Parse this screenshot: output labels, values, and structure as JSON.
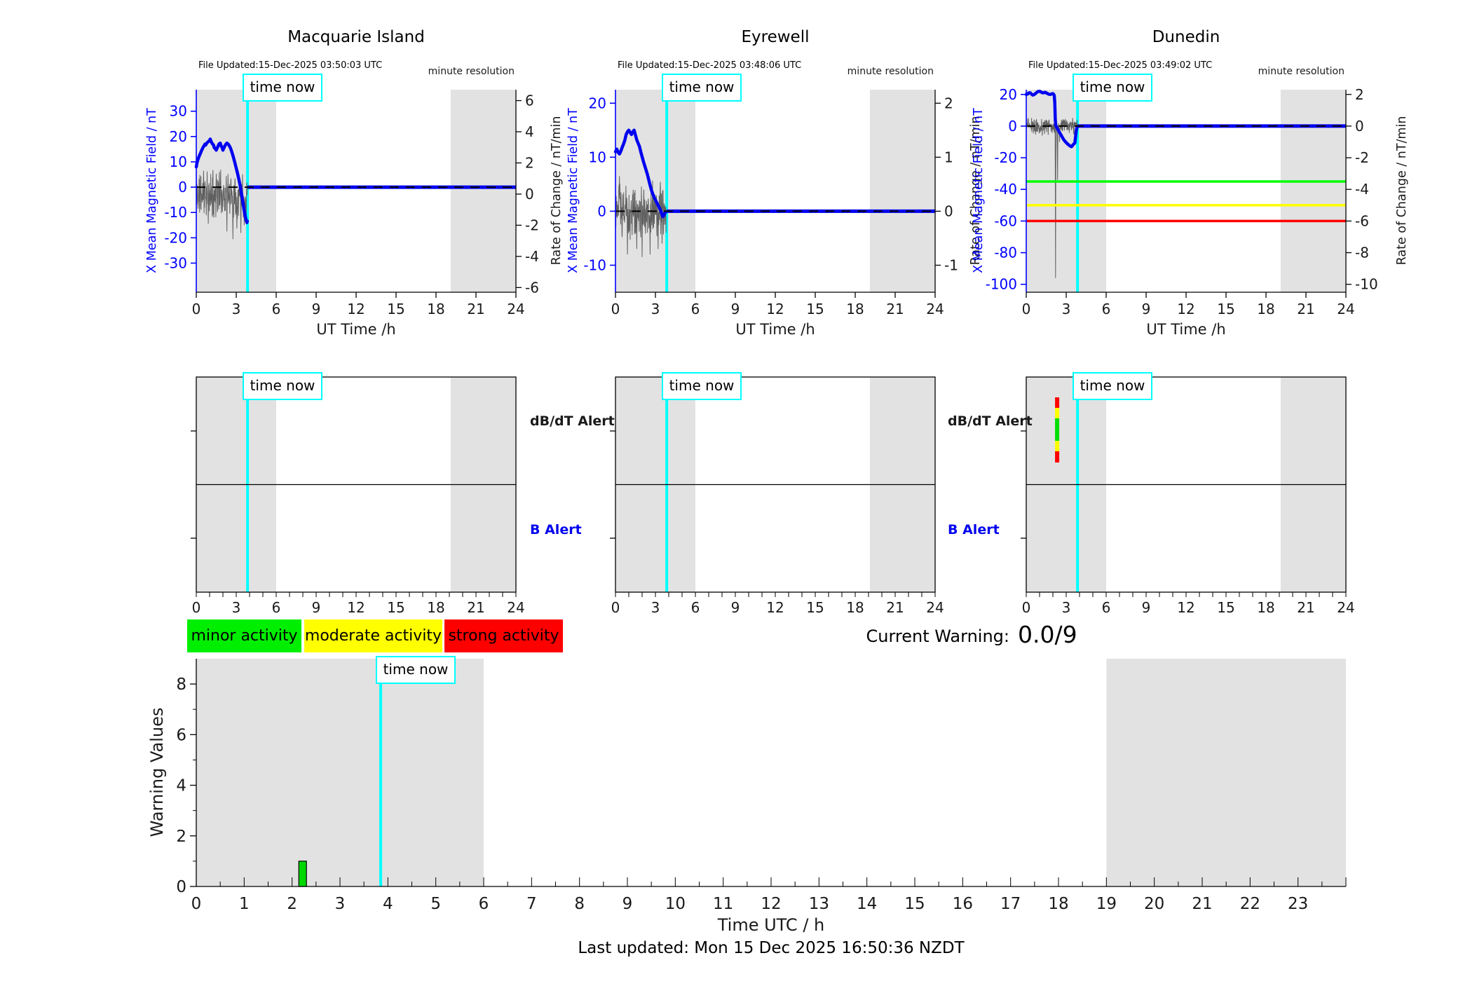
{
  "alert_row": {
    "db_dt_label": "dB/dT Alert",
    "b_label": "B Alert",
    "dunedin_bar": {
      "time": 2.32,
      "width": 6,
      "top_offset": 29,
      "segments": [
        {
          "color": "#ff0000",
          "weight": 15
        },
        {
          "color": "#ffff00",
          "weight": 15
        },
        {
          "color": "#00dd00",
          "weight": 32
        },
        {
          "color": "#ffff00",
          "weight": 15
        },
        {
          "color": "#ff0000",
          "weight": 16
        }
      ]
    }
  },
  "activity_legend": [
    {
      "label": "minor activity",
      "color": "#00ef00"
    },
    {
      "label": "moderate activity",
      "color": "#ffff00"
    },
    {
      "label": "strong activity",
      "color": "#ff0000"
    }
  ],
  "current_warning": {
    "label": "Current Warning:",
    "value": "0.0/9"
  },
  "footer": {
    "last_updated": "Last updated: Mon 15 Dec 2025 16:50:36 NZDT"
  },
  "colors": {
    "field_line": "#0000f0",
    "noise_line": "#606060",
    "time_now": "#00ffff",
    "night_band": "#e2e2e2",
    "tick_text": "#1a1a1a",
    "blue_axis": "#0000ff"
  },
  "chart_data": [
    {
      "type": "line",
      "title": "Macquarie Island",
      "file_updated": "File Updated:15-Dec-2025 03:50:03 UTC",
      "resolution_note": "minute resolution",
      "time_now_label": "time now",
      "time_now": 3.85,
      "night_shading": [
        [
          0,
          6
        ],
        [
          19.1,
          24
        ]
      ],
      "x_axis": {
        "label": "UT Time /h",
        "range": [
          0,
          24
        ],
        "ticks": [
          0,
          3,
          6,
          9,
          12,
          15,
          18,
          21,
          24
        ]
      },
      "left_axis": {
        "label": "X Mean Magnetic Field / nT",
        "range": [
          -41.5,
          38.5
        ],
        "ticks": [
          30,
          20,
          10,
          0,
          -10,
          -20,
          -30
        ]
      },
      "right_axis": {
        "label": "Rate of Change / nT/min",
        "range": [
          -6.3,
          6.7
        ],
        "ticks": [
          6,
          4,
          2,
          0,
          -2,
          -4,
          -6
        ]
      },
      "thresholds": [],
      "flat_value_after_now": 0,
      "field_series": [
        [
          0,
          8
        ],
        [
          0.05,
          9.5
        ],
        [
          0.1,
          10.5
        ],
        [
          0.2,
          12
        ],
        [
          0.3,
          13.2
        ],
        [
          0.4,
          14.5
        ],
        [
          0.5,
          15.6
        ],
        [
          0.6,
          16.5
        ],
        [
          0.65,
          17
        ],
        [
          0.7,
          16.6
        ],
        [
          0.8,
          17.5
        ],
        [
          0.9,
          18
        ],
        [
          1,
          18.4
        ],
        [
          1.05,
          19
        ],
        [
          1.1,
          18.2
        ],
        [
          1.2,
          17.2
        ],
        [
          1.3,
          16.6
        ],
        [
          1.35,
          15.6
        ],
        [
          1.45,
          15
        ],
        [
          1.5,
          14.6
        ],
        [
          1.55,
          15.2
        ],
        [
          1.65,
          16.4
        ],
        [
          1.7,
          17
        ],
        [
          1.8,
          17.4
        ],
        [
          1.85,
          16.6
        ],
        [
          1.95,
          15.4
        ],
        [
          2,
          14.6
        ],
        [
          2.1,
          15.8
        ],
        [
          2.2,
          16.8
        ],
        [
          2.3,
          17.4
        ],
        [
          2.4,
          17
        ],
        [
          2.5,
          16.2
        ],
        [
          2.6,
          15
        ],
        [
          2.7,
          13.4
        ],
        [
          2.8,
          11.6
        ],
        [
          2.9,
          9.6
        ],
        [
          3,
          7.5
        ],
        [
          3.1,
          5.4
        ],
        [
          3.2,
          3
        ],
        [
          3.3,
          0.4
        ],
        [
          3.4,
          -2.6
        ],
        [
          3.5,
          -6
        ],
        [
          3.6,
          -9.4
        ],
        [
          3.7,
          -12
        ],
        [
          3.75,
          -13.2
        ],
        [
          3.8,
          -14
        ],
        [
          3.83,
          -13.4
        ]
      ],
      "rate_noise": {
        "sigma": 0.9,
        "t_end": 3.83,
        "seed": 11,
        "spikes": [
          [
            0.55,
            1.5
          ],
          [
            0.9,
            -1.9
          ],
          [
            1.5,
            1.3
          ],
          [
            2.3,
            -2.4
          ],
          [
            2.75,
            -2.9
          ],
          [
            3.05,
            -2.2
          ],
          [
            3.35,
            -2.5
          ],
          [
            3.6,
            -2
          ]
        ]
      }
    },
    {
      "type": "line",
      "title": "Eyrewell",
      "file_updated": "File Updated:15-Dec-2025 03:48:06 UTC",
      "resolution_note": "minute resolution",
      "time_now_label": "time now",
      "time_now": 3.85,
      "night_shading": [
        [
          0,
          6
        ],
        [
          19.1,
          24
        ]
      ],
      "x_axis": {
        "label": "UT Time /h",
        "range": [
          0,
          24
        ],
        "ticks": [
          0,
          3,
          6,
          9,
          12,
          15,
          18,
          21,
          24
        ]
      },
      "left_axis": {
        "label": "X Mean Magnetic Field / nT",
        "range": [
          -15,
          22.5
        ],
        "ticks": [
          20,
          10,
          0,
          -10
        ]
      },
      "right_axis": {
        "label": "Rate of Change / nT/min",
        "range": [
          -1.5,
          2.25
        ],
        "ticks": [
          2,
          1,
          0,
          -1
        ]
      },
      "thresholds": [],
      "flat_value_after_now": 0,
      "field_series": [
        [
          0,
          11
        ],
        [
          0.1,
          11.5
        ],
        [
          0.2,
          10.9
        ],
        [
          0.3,
          10.6
        ],
        [
          0.4,
          11.1
        ],
        [
          0.5,
          11.8
        ],
        [
          0.6,
          12.4
        ],
        [
          0.7,
          13.1
        ],
        [
          0.8,
          14.2
        ],
        [
          0.9,
          14.7
        ],
        [
          1,
          15
        ],
        [
          1.1,
          14.6
        ],
        [
          1.2,
          14.2
        ],
        [
          1.3,
          14.7
        ],
        [
          1.4,
          15
        ],
        [
          1.5,
          14.1
        ],
        [
          1.6,
          13.2
        ],
        [
          1.7,
          12.6
        ],
        [
          1.8,
          12
        ],
        [
          1.9,
          11
        ],
        [
          2,
          10.1
        ],
        [
          2.1,
          9.2
        ],
        [
          2.2,
          8.4
        ],
        [
          2.3,
          7.6
        ],
        [
          2.4,
          6.8
        ],
        [
          2.5,
          5.8
        ],
        [
          2.6,
          4.8
        ],
        [
          2.7,
          3.9
        ],
        [
          2.8,
          3.2
        ],
        [
          2.9,
          2.6
        ],
        [
          3,
          2.1
        ],
        [
          3.1,
          1.6
        ],
        [
          3.2,
          1.1
        ],
        [
          3.3,
          0.6
        ],
        [
          3.4,
          0.1
        ],
        [
          3.5,
          -0.7
        ],
        [
          3.55,
          -1
        ],
        [
          3.6,
          -0.9
        ],
        [
          3.7,
          -0.4
        ],
        [
          3.8,
          -0.1
        ]
      ],
      "rate_noise": {
        "sigma": 0.32,
        "t_end": 3.8,
        "seed": 23,
        "spikes": [
          [
            0.3,
            0.65
          ],
          [
            0.9,
            -0.8
          ],
          [
            1.6,
            -0.7
          ],
          [
            2,
            -0.85
          ],
          [
            2.6,
            -0.8
          ],
          [
            3.2,
            -0.7
          ],
          [
            3.5,
            -0.6
          ]
        ]
      }
    },
    {
      "type": "line",
      "title": "Dunedin",
      "file_updated": "File Updated:15-Dec-2025 03:49:02 UTC",
      "resolution_note": "minute resolution",
      "time_now_label": "time now",
      "time_now": 3.85,
      "night_shading": [
        [
          0,
          6
        ],
        [
          19.1,
          24
        ]
      ],
      "x_axis": {
        "label": "UT Time /h",
        "range": [
          0,
          24
        ],
        "ticks": [
          0,
          3,
          6,
          9,
          12,
          15,
          18,
          21,
          24
        ]
      },
      "left_axis": {
        "label": "X Mean Magnetic Field / nT",
        "range": [
          -105,
          23
        ],
        "ticks": [
          20,
          0,
          -20,
          -40,
          -60,
          -80,
          -100
        ]
      },
      "right_axis": {
        "label": "Rate of Change / nT/min",
        "range": [
          -10.5,
          2.3
        ],
        "ticks": [
          2,
          0,
          -2,
          -4,
          -6,
          -8,
          -10
        ]
      },
      "thresholds": [
        {
          "value": -35,
          "color": "#00ff00"
        },
        {
          "value": -50,
          "color": "#ffff00"
        },
        {
          "value": -60,
          "color": "#ff0000"
        }
      ],
      "flat_value_after_now": 0,
      "field_series": [
        [
          0,
          20
        ],
        [
          0.1,
          20.3
        ],
        [
          0.2,
          21
        ],
        [
          0.3,
          21
        ],
        [
          0.4,
          20.1
        ],
        [
          0.5,
          19.6
        ],
        [
          0.6,
          20
        ],
        [
          0.7,
          20.6
        ],
        [
          0.8,
          21.4
        ],
        [
          0.9,
          21.9
        ],
        [
          1,
          22
        ],
        [
          1.1,
          21.6
        ],
        [
          1.2,
          21.1
        ],
        [
          1.3,
          21
        ],
        [
          1.4,
          21.4
        ],
        [
          1.5,
          21
        ],
        [
          1.6,
          20.5
        ],
        [
          1.7,
          20.1
        ],
        [
          1.8,
          20
        ],
        [
          1.9,
          20.3
        ],
        [
          2,
          20.5
        ],
        [
          2.05,
          20.1
        ],
        [
          2.1,
          19.4
        ],
        [
          2.14,
          15
        ],
        [
          2.18,
          4
        ],
        [
          2.22,
          0.4
        ],
        [
          2.3,
          -1.1
        ],
        [
          2.4,
          -2.6
        ],
        [
          2.5,
          -4
        ],
        [
          2.6,
          -5.5
        ],
        [
          2.7,
          -7
        ],
        [
          2.8,
          -8.4
        ],
        [
          2.9,
          -9.5
        ],
        [
          3,
          -10.4
        ],
        [
          3.1,
          -11.3
        ],
        [
          3.2,
          -12
        ],
        [
          3.3,
          -12.6
        ],
        [
          3.4,
          -13
        ],
        [
          3.45,
          -12.6
        ],
        [
          3.5,
          -11.9
        ],
        [
          3.6,
          -11
        ],
        [
          3.65,
          -10.7
        ],
        [
          3.7,
          -7
        ],
        [
          3.75,
          -3
        ],
        [
          3.8,
          -1
        ]
      ],
      "rate_noise": {
        "sigma": 0.3,
        "t_end": 3.83,
        "seed": 37,
        "spikes": [
          [
            0.15,
            0.5
          ],
          [
            1.2,
            -0.6
          ],
          [
            2.2,
            -9.6
          ],
          [
            2.35,
            -3.4
          ],
          [
            2.5,
            -1
          ]
        ]
      }
    },
    {
      "type": "bar",
      "ylabel": "Warning Values",
      "xlabel": "Time UTC / h",
      "time_now_label": "time now",
      "time_now": 3.85,
      "y_range": [
        0,
        9
      ],
      "y_ticks": [
        0,
        2,
        4,
        6,
        8
      ],
      "y_minor_ticks": [
        1,
        3,
        5,
        7
      ],
      "x_range": [
        0,
        24
      ],
      "x_ticks": [
        0,
        1,
        2,
        3,
        4,
        5,
        6,
        7,
        8,
        9,
        10,
        11,
        12,
        13,
        14,
        15,
        16,
        17,
        18,
        19,
        20,
        21,
        22,
        23
      ],
      "night_shading": [
        [
          0,
          6
        ],
        [
          19,
          24
        ]
      ],
      "bars": [
        {
          "t_start": 2.14,
          "t_end": 2.3,
          "value": 1,
          "color": "#00d800"
        }
      ]
    }
  ]
}
